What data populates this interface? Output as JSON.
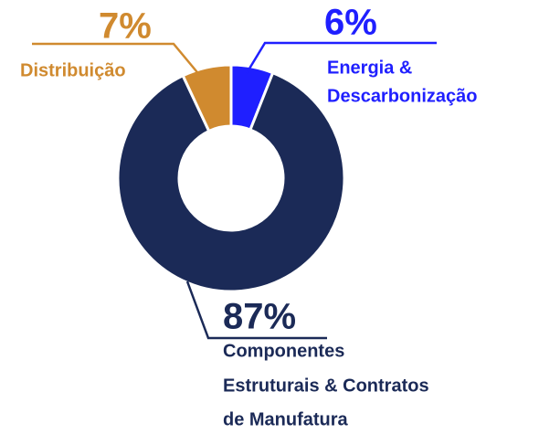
{
  "chart_data": {
    "type": "donut",
    "categories": [
      [
        "Energia &",
        "Descarbonização"
      ],
      [
        "Componentes",
        "Estruturais & Contratos",
        "de Manufatura"
      ],
      [
        "Distribuição"
      ]
    ],
    "values": [
      6,
      87,
      7
    ],
    "value_labels": [
      "6%",
      "87%",
      "7%"
    ],
    "colors": [
      "#1f1fff",
      "#1b2a57",
      "#d08a2f"
    ]
  }
}
